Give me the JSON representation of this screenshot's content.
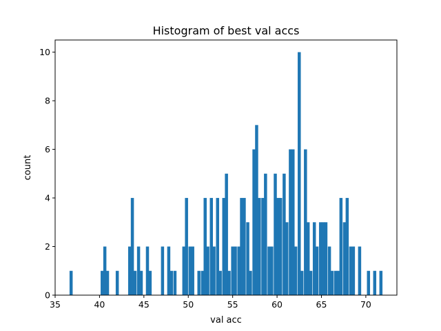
{
  "chart_data": {
    "type": "bar",
    "title": "Histogram of best val accs",
    "xlabel": "val acc",
    "ylabel": "count",
    "xlim": [
      35,
      73.5
    ],
    "ylim": [
      0,
      10.5
    ],
    "xticks": [
      35,
      40,
      45,
      50,
      55,
      60,
      65,
      70
    ],
    "yticks": [
      0,
      2,
      4,
      6,
      8,
      10
    ],
    "bar_color": "#1f77b4",
    "grid": false,
    "bin_width": 0.35,
    "series": [
      {
        "x": [
          36.8,
          40.3,
          40.6,
          40.9,
          42.0,
          43.4,
          43.7,
          44.0,
          44.4,
          44.7,
          45.4,
          45.7,
          47.1,
          47.8,
          48.1,
          48.5,
          49.5,
          49.8,
          50.2,
          50.5,
          51.2,
          51.6,
          51.9,
          52.2,
          52.6,
          52.9,
          53.3,
          53.6,
          54.0,
          54.3,
          54.6,
          55.0,
          55.3,
          55.7,
          56.0,
          56.3,
          56.7,
          57.0,
          57.4,
          57.7,
          58.0,
          58.4,
          58.7,
          59.1,
          59.4,
          59.8,
          60.1,
          60.4,
          60.8,
          61.1,
          61.5,
          61.8,
          62.1,
          62.5,
          62.8,
          63.2,
          63.5,
          63.8,
          64.2,
          64.5,
          64.9,
          65.2,
          65.5,
          65.9,
          66.2,
          66.6,
          66.9,
          67.2,
          67.6,
          67.9,
          68.3,
          68.6,
          69.3,
          70.3,
          71.0,
          71.7
        ],
        "counts": [
          1,
          1,
          2,
          1,
          1,
          2,
          4,
          1,
          2,
          1,
          2,
          1,
          2,
          2,
          1,
          1,
          2,
          4,
          2,
          2,
          1,
          1,
          4,
          2,
          4,
          2,
          4,
          1,
          4,
          5,
          1,
          2,
          2,
          2,
          4,
          4,
          3,
          1,
          6,
          7,
          4,
          4,
          5,
          2,
          2,
          5,
          4,
          4,
          5,
          3,
          6,
          6,
          2,
          10,
          1,
          6,
          3,
          1,
          3,
          2,
          3,
          3,
          3,
          2,
          1,
          1,
          1,
          4,
          3,
          4,
          2,
          2,
          2,
          1,
          1,
          1
        ]
      }
    ]
  }
}
